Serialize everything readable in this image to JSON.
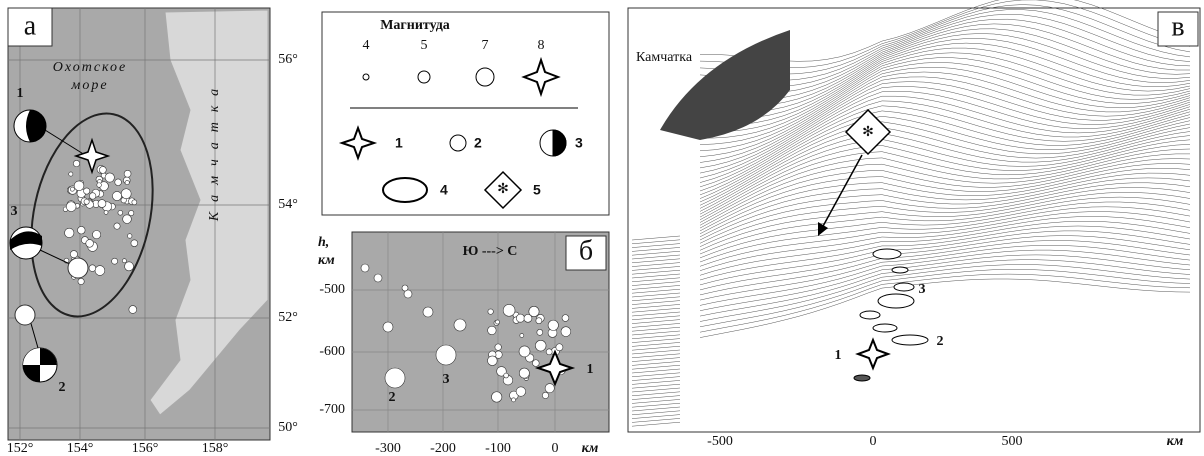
{
  "panel_a": {
    "label": "а",
    "sea": [
      "Охотское",
      "море"
    ],
    "land": "Камчатка",
    "lat_labels": [
      "56°",
      "54°",
      "52°",
      "50°"
    ],
    "lon_labels": [
      "152°",
      "154°",
      "156°",
      "158°"
    ],
    "mechanisms": [
      "1",
      "3",
      "2"
    ]
  },
  "legend": {
    "title": "Магнитуда",
    "magnitudes": [
      "4",
      "5",
      "7",
      "8"
    ],
    "items": [
      "1",
      "2",
      "3",
      "4",
      "5"
    ]
  },
  "panel_b": {
    "label": "б",
    "y_title": "h,",
    "y_unit": "км",
    "direction": "Ю ---> С",
    "y_ticks": [
      "-500",
      "-600",
      "-700"
    ],
    "x_ticks": [
      "-300",
      "-200",
      "-100",
      "0"
    ],
    "x_unit": "км",
    "events": [
      "1",
      "2",
      "3"
    ]
  },
  "panel_c": {
    "label": "в",
    "place": "Камчатка",
    "x_ticks": [
      "-500",
      "0",
      "500"
    ],
    "x_unit": "км",
    "events": [
      "1",
      "2",
      "3"
    ]
  }
}
